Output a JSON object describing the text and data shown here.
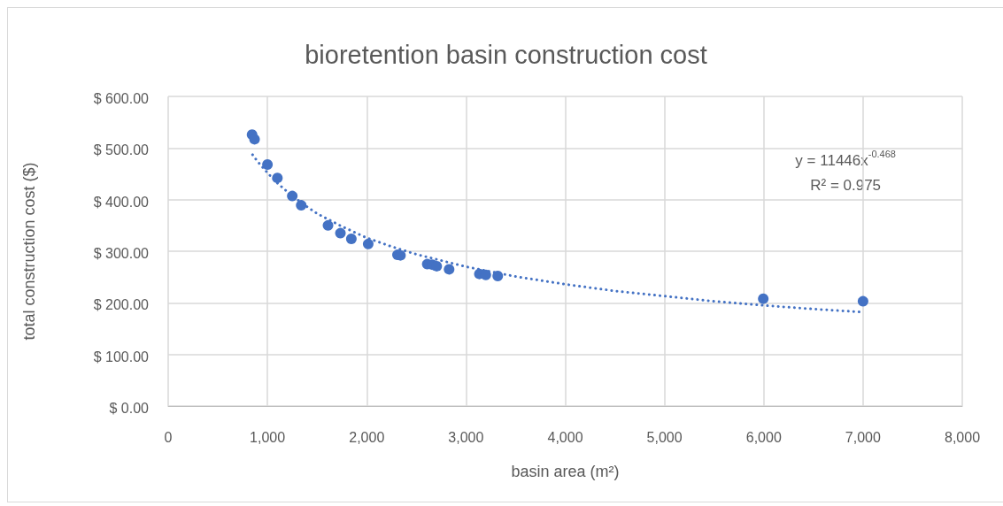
{
  "chart_data": {
    "type": "scatter",
    "title": "bioretention basin construction cost",
    "xlabel": "basin area (m²)",
    "ylabel": "total construction cost ($)",
    "xlim": [
      0,
      8000
    ],
    "xticks": [
      0,
      {
        "value": 1000,
        "label": "1,000"
      },
      {
        "value": 2000,
        "label": "2,000"
      },
      {
        "value": 3000,
        "label": "3,000"
      },
      {
        "value": 4000,
        "label": "4,000"
      },
      {
        "value": 5000,
        "label": "5,000"
      },
      {
        "value": 6000,
        "label": "6,000"
      },
      {
        "value": 7000,
        "label": "7,000"
      },
      {
        "value": 8000,
        "label": "8,000"
      }
    ],
    "ylim": [
      0,
      600
    ],
    "yticks": [
      {
        "value": 0,
        "label": "$ 0.00"
      },
      {
        "value": 100,
        "label": "$ 100.00"
      },
      {
        "value": 200,
        "label": "$ 200.00"
      },
      {
        "value": 300,
        "label": "$ 300.00"
      },
      {
        "value": 400,
        "label": "$ 400.00"
      },
      {
        "value": 500,
        "label": "$ 500.00"
      },
      {
        "value": 600,
        "label": "$ 600.00"
      }
    ],
    "grid": true,
    "marker": "circle",
    "annotations": [
      "y = 11446x$^{-0.468}$",
      "R² = 0.975"
    ],
    "series": [
      {
        "color": "#4472c4",
        "x": [
          845,
          870,
          1000,
          1100,
          1250,
          1340,
          1610,
          1735,
          1845,
          2015,
          2310,
          2340,
          2610,
          2660,
          2705,
          2830,
          3135,
          3200,
          3320,
          5995,
          7000
        ],
        "values": [
          526,
          517,
          468,
          442,
          407,
          389,
          350,
          335,
          324,
          314,
          293,
          292,
          275,
          274,
          271,
          265,
          256,
          254,
          252,
          208,
          203
        ]
      },
      {
        "type": "line",
        "color": "#4472c4",
        "line_style": "dotted",
        "marker": "none",
        "x": [
          850,
          900,
          1000,
          1100,
          1250,
          1400,
          1500,
          1750,
          2000,
          2250,
          2500,
          3000,
          3500,
          4000,
          4500,
          5000,
          5500,
          6000,
          6500,
          7000
        ],
        "values": [
          487,
          474,
          452,
          432,
          407,
          386,
          373,
          348,
          326,
          309,
          294,
          270,
          251,
          236,
          223,
          213,
          203,
          195,
          188,
          182
        ]
      }
    ]
  }
}
